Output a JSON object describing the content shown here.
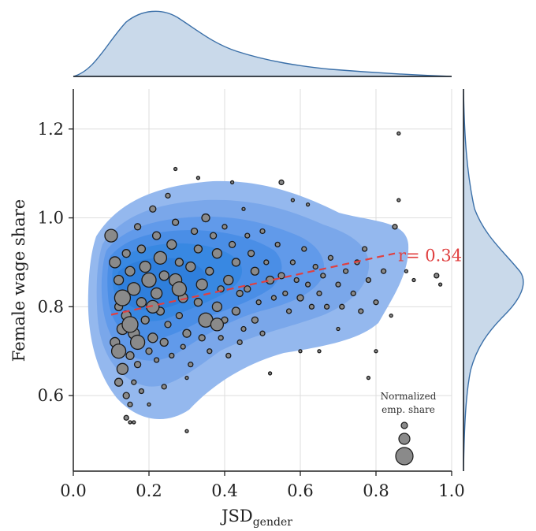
{
  "chart_data": {
    "type": "scatter",
    "xlabel_main": "JSD",
    "xlabel_sub": "gender",
    "ylabel": "Female wage share",
    "xlim": [
      0.0,
      1.0
    ],
    "ylim": [
      0.43,
      1.29
    ],
    "x_ticks": [
      "0.0",
      "0.2",
      "0.4",
      "0.6",
      "0.8",
      "1.0"
    ],
    "y_ticks": [
      "0.6",
      "0.8",
      "1.0",
      "1.2"
    ],
    "grid": true,
    "annotation": {
      "text": "r= 0.34",
      "x": 0.85,
      "y": 0.915,
      "color": "#e04040"
    },
    "trend_line": {
      "x": [
        0.1,
        0.85
      ],
      "y": [
        0.782,
        0.92
      ],
      "color": "#e04040",
      "style": "dashed"
    },
    "legend": {
      "title_line1": "Normalized",
      "title_line2": "emp. share",
      "placement": "bottom-right"
    },
    "colors": {
      "point_fill": "#8a8a8a",
      "point_edge": "#1a1a1a",
      "kde_fill_outer": "#8fb4ef",
      "kde_fill_inner": "#2f86e0",
      "marginal_fill": "#c9d9ea",
      "marginal_line": "#3a6fa8"
    },
    "points": [
      [
        0.1,
        0.96,
        8
      ],
      [
        0.11,
        0.9,
        7
      ],
      [
        0.12,
        0.86,
        6
      ],
      [
        0.12,
        0.8,
        5
      ],
      [
        0.13,
        0.75,
        7
      ],
      [
        0.11,
        0.72,
        6
      ],
      [
        0.12,
        0.7,
        9
      ],
      [
        0.13,
        0.66,
        7
      ],
      [
        0.12,
        0.63,
        5
      ],
      [
        0.14,
        0.6,
        4
      ],
      [
        0.15,
        0.58,
        3
      ],
      [
        0.14,
        0.55,
        3
      ],
      [
        0.15,
        0.54,
        2
      ],
      [
        0.14,
        0.92,
        5
      ],
      [
        0.15,
        0.88,
        6
      ],
      [
        0.16,
        0.84,
        8
      ],
      [
        0.14,
        0.78,
        6
      ],
      [
        0.16,
        0.74,
        7
      ],
      [
        0.15,
        0.69,
        5
      ],
      [
        0.17,
        0.67,
        4
      ],
      [
        0.16,
        0.63,
        3
      ],
      [
        0.18,
        0.61,
        3
      ],
      [
        0.17,
        0.98,
        4
      ],
      [
        0.18,
        0.93,
        5
      ],
      [
        0.19,
        0.89,
        7
      ],
      [
        0.2,
        0.86,
        9
      ],
      [
        0.18,
        0.81,
        6
      ],
      [
        0.19,
        0.77,
        5
      ],
      [
        0.21,
        0.73,
        6
      ],
      [
        0.2,
        0.7,
        4
      ],
      [
        0.22,
        0.68,
        3
      ],
      [
        0.21,
        1.02,
        4
      ],
      [
        0.22,
        0.96,
        5
      ],
      [
        0.23,
        0.91,
        8
      ],
      [
        0.24,
        0.87,
        6
      ],
      [
        0.22,
        0.83,
        7
      ],
      [
        0.23,
        0.79,
        5
      ],
      [
        0.25,
        0.76,
        4
      ],
      [
        0.24,
        0.72,
        5
      ],
      [
        0.26,
        0.69,
        3
      ],
      [
        0.25,
        1.05,
        3
      ],
      [
        0.27,
        0.99,
        4
      ],
      [
        0.26,
        0.94,
        6
      ],
      [
        0.28,
        0.9,
        5
      ],
      [
        0.27,
        0.86,
        8
      ],
      [
        0.29,
        0.82,
        6
      ],
      [
        0.28,
        0.78,
        4
      ],
      [
        0.3,
        0.74,
        5
      ],
      [
        0.29,
        0.71,
        3
      ],
      [
        0.31,
        0.67,
        3
      ],
      [
        0.3,
        0.64,
        2
      ],
      [
        0.32,
        0.97,
        4
      ],
      [
        0.33,
        0.93,
        5
      ],
      [
        0.31,
        0.89,
        6
      ],
      [
        0.34,
        0.85,
        7
      ],
      [
        0.33,
        0.81,
        5
      ],
      [
        0.35,
        0.77,
        9
      ],
      [
        0.34,
        0.73,
        4
      ],
      [
        0.36,
        0.7,
        3
      ],
      [
        0.35,
        1.0,
        5
      ],
      [
        0.37,
        0.96,
        4
      ],
      [
        0.38,
        0.92,
        6
      ],
      [
        0.36,
        0.88,
        5
      ],
      [
        0.39,
        0.84,
        4
      ],
      [
        0.38,
        0.8,
        6
      ],
      [
        0.4,
        0.77,
        4
      ],
      [
        0.39,
        0.73,
        3
      ],
      [
        0.41,
        0.69,
        3
      ],
      [
        0.4,
        0.98,
        3
      ],
      [
        0.42,
        0.94,
        4
      ],
      [
        0.43,
        0.9,
        5
      ],
      [
        0.41,
        0.86,
        6
      ],
      [
        0.44,
        0.83,
        4
      ],
      [
        0.43,
        0.79,
        5
      ],
      [
        0.45,
        0.75,
        3
      ],
      [
        0.44,
        0.72,
        3
      ],
      [
        0.46,
        0.96,
        3
      ],
      [
        0.47,
        0.92,
        4
      ],
      [
        0.48,
        0.88,
        5
      ],
      [
        0.46,
        0.84,
        4
      ],
      [
        0.49,
        0.81,
        3
      ],
      [
        0.48,
        0.77,
        4
      ],
      [
        0.5,
        0.74,
        3
      ],
      [
        0.51,
        0.9,
        3
      ],
      [
        0.52,
        0.86,
        5
      ],
      [
        0.53,
        0.82,
        3
      ],
      [
        0.5,
        0.97,
        3
      ],
      [
        0.54,
        0.94,
        3
      ],
      [
        0.55,
        0.87,
        4
      ],
      [
        0.56,
        0.83,
        3
      ],
      [
        0.57,
        0.79,
        3
      ],
      [
        0.58,
        0.9,
        3
      ],
      [
        0.59,
        0.86,
        3
      ],
      [
        0.6,
        0.82,
        4
      ],
      [
        0.61,
        0.93,
        3
      ],
      [
        0.62,
        0.85,
        3
      ],
      [
        0.63,
        0.8,
        3
      ],
      [
        0.64,
        0.89,
        3
      ],
      [
        0.65,
        0.83,
        3
      ],
      [
        0.66,
        0.87,
        3
      ],
      [
        0.67,
        0.8,
        3
      ],
      [
        0.68,
        0.91,
        3
      ],
      [
        0.7,
        0.85,
        3
      ],
      [
        0.71,
        0.8,
        3
      ],
      [
        0.72,
        0.88,
        3
      ],
      [
        0.74,
        0.83,
        3
      ],
      [
        0.75,
        0.9,
        3
      ],
      [
        0.76,
        0.79,
        3
      ],
      [
        0.78,
        0.86,
        3
      ],
      [
        0.77,
        0.93,
        3
      ],
      [
        0.8,
        0.81,
        3
      ],
      [
        0.82,
        0.88,
        3
      ],
      [
        0.84,
        0.78,
        2
      ],
      [
        0.85,
        0.98,
        3
      ],
      [
        0.86,
        1.04,
        2
      ],
      [
        0.88,
        0.88,
        2
      ],
      [
        0.9,
        0.86,
        2
      ],
      [
        0.96,
        0.87,
        3
      ],
      [
        0.97,
        0.85,
        2
      ],
      [
        0.86,
        1.19,
        2
      ],
      [
        0.8,
        0.7,
        2
      ],
      [
        0.78,
        0.64,
        2
      ],
      [
        0.3,
        0.52,
        2
      ],
      [
        0.16,
        0.54,
        2
      ],
      [
        0.27,
        1.11,
        2
      ],
      [
        0.33,
        1.09,
        2
      ],
      [
        0.42,
        1.08,
        2
      ],
      [
        0.55,
        1.08,
        3
      ],
      [
        0.58,
        1.04,
        2
      ],
      [
        0.62,
        1.03,
        2
      ],
      [
        0.45,
        1.02,
        2
      ],
      [
        0.65,
        0.7,
        2
      ],
      [
        0.7,
        0.75,
        2
      ],
      [
        0.6,
        0.7,
        2
      ],
      [
        0.52,
        0.65,
        2
      ],
      [
        0.24,
        0.62,
        3
      ],
      [
        0.2,
        0.58,
        2
      ],
      [
        0.13,
        0.82,
        10
      ],
      [
        0.17,
        0.72,
        9
      ],
      [
        0.21,
        0.8,
        8
      ],
      [
        0.28,
        0.84,
        9
      ],
      [
        0.38,
        0.76,
        8
      ],
      [
        0.15,
        0.76,
        10
      ]
    ]
  }
}
